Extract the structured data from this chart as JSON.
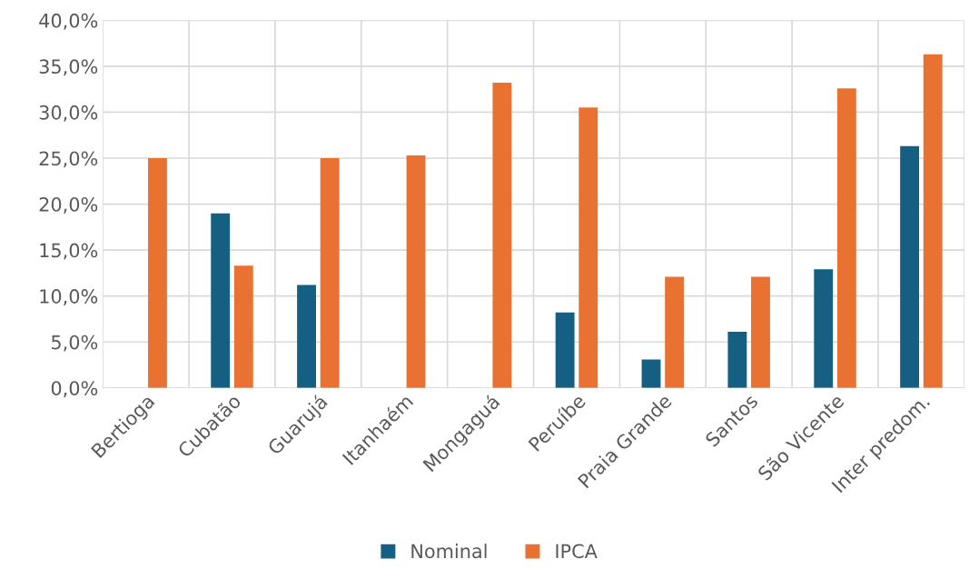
{
  "chart_data": {
    "type": "bar",
    "categories": [
      "Bertioga",
      "Cubatão",
      "Guarujá",
      "Itanhaém",
      "Mongaguá",
      "Peruíbe",
      "Praia Grande",
      "Santos",
      "São Vicente",
      "Inter predom."
    ],
    "series": [
      {
        "name": "Nominal",
        "color": "#156082",
        "values": [
          0,
          19.0,
          11.2,
          0,
          0,
          8.2,
          3.1,
          6.1,
          12.9,
          26.3
        ]
      },
      {
        "name": "IPCA",
        "color": "#e97132",
        "values": [
          25.0,
          13.3,
          25.0,
          25.3,
          33.2,
          30.5,
          12.1,
          12.1,
          32.6,
          36.3
        ]
      }
    ],
    "ylim": [
      0,
      40
    ],
    "yticks": [
      {
        "value": 0,
        "label": "0,0%"
      },
      {
        "value": 5,
        "label": "5,0%"
      },
      {
        "value": 10,
        "label": "10,0%"
      },
      {
        "value": 15,
        "label": "15,0%"
      },
      {
        "value": 20,
        "label": "20,0%"
      },
      {
        "value": 25,
        "label": "25,0%"
      },
      {
        "value": 30,
        "label": "30,0%"
      },
      {
        "value": 35,
        "label": "35,0%"
      },
      {
        "value": 40,
        "label": "40,0%"
      }
    ],
    "grid": true,
    "legend": "bottom"
  }
}
